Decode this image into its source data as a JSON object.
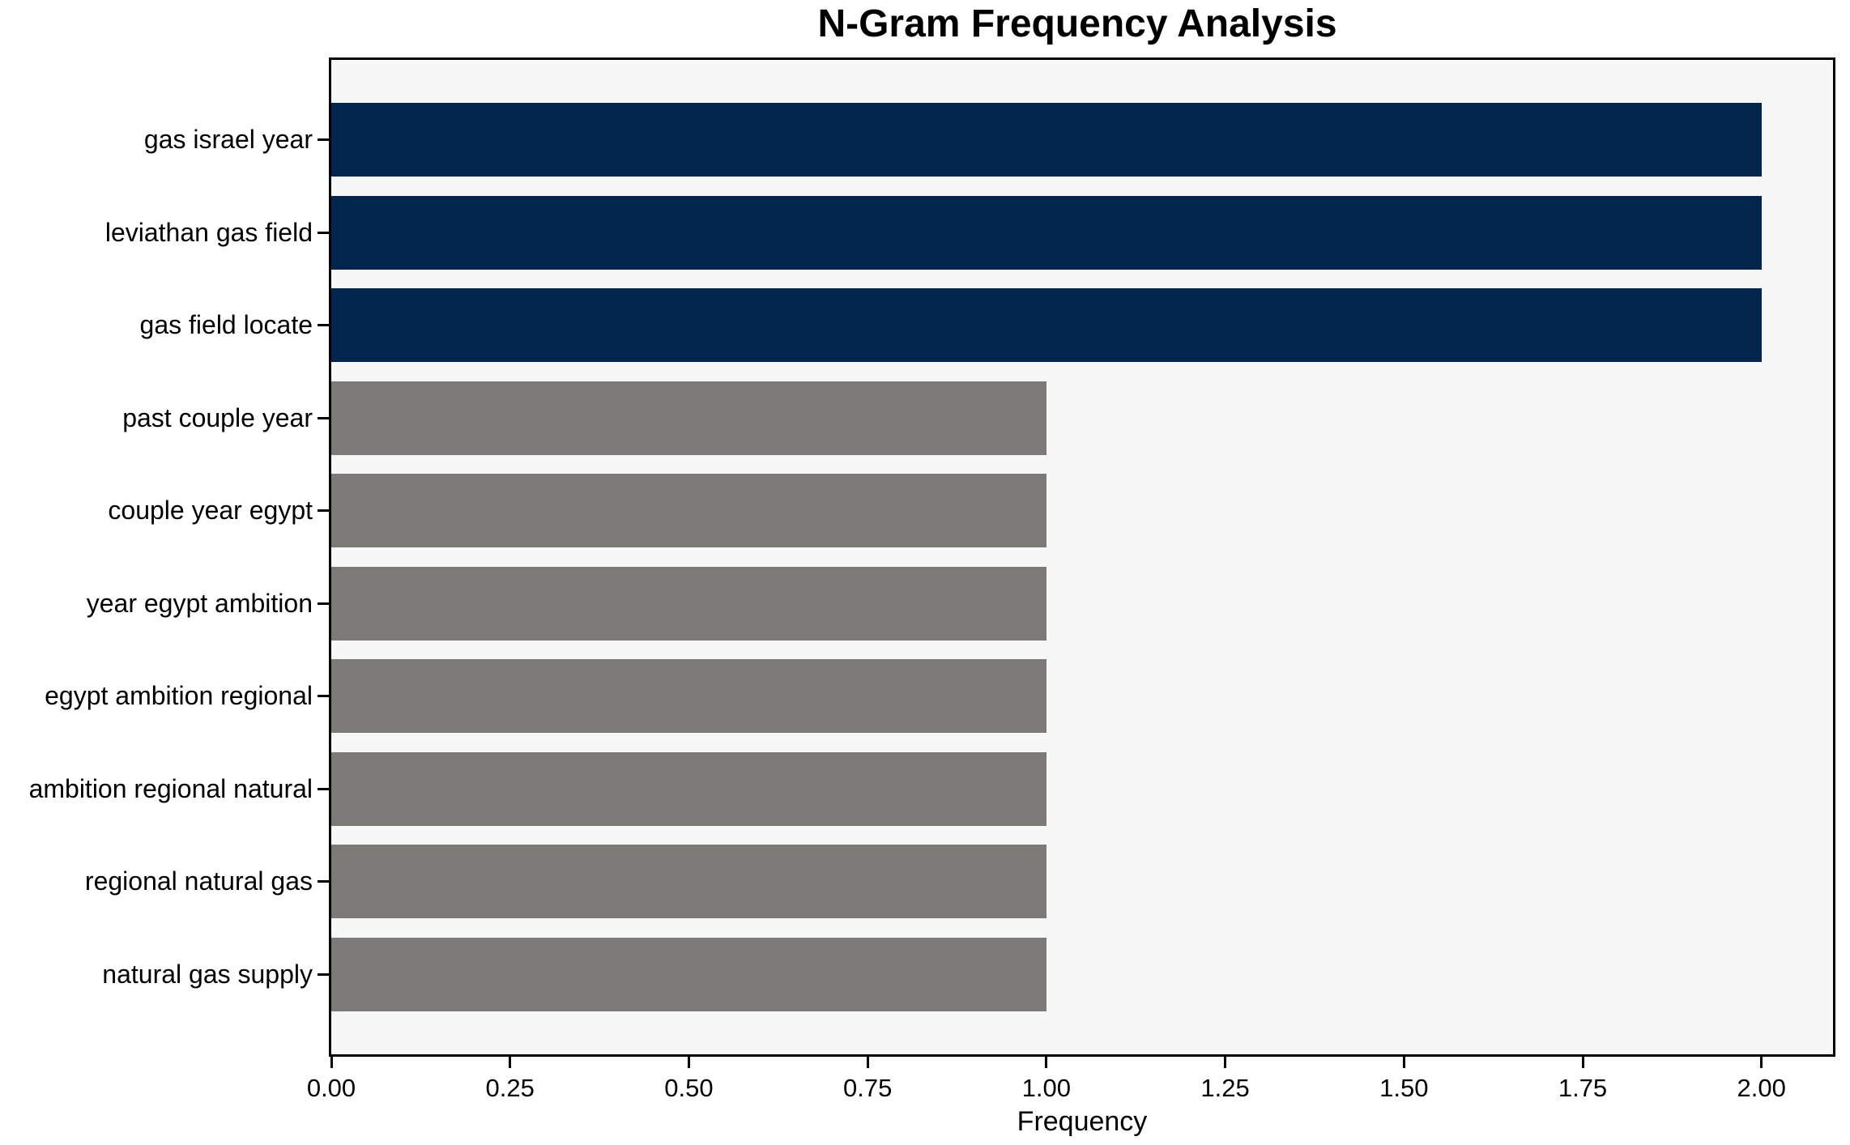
{
  "chart_data": {
    "type": "bar",
    "orientation": "horizontal",
    "title": "N-Gram Frequency Analysis",
    "xlabel": "Frequency",
    "ylabel": "",
    "categories": [
      "gas israel year",
      "leviathan gas field",
      "gas field locate",
      "past couple year",
      "couple year egypt",
      "year egypt ambition",
      "egypt ambition regional",
      "ambition regional natural",
      "regional natural gas",
      "natural gas supply"
    ],
    "values": [
      2,
      2,
      2,
      1,
      1,
      1,
      1,
      1,
      1,
      1
    ],
    "bar_colors": [
      "#01254d",
      "#01254d",
      "#01254d",
      "#7b7a76",
      "#7b7a76",
      "#7b7a76",
      "#7b7a76",
      "#7b7a76",
      "#7b7a76",
      "#7b7a76"
    ],
    "highlight_color": "#01254d",
    "default_color": "#7b7a76",
    "x_ticks": [
      "0.00",
      "0.25",
      "0.50",
      "0.75",
      "1.00",
      "1.25",
      "1.50",
      "1.75",
      "2.00"
    ],
    "x_tick_values": [
      0,
      0.25,
      0.5,
      0.75,
      1,
      1.25,
      1.5,
      1.75,
      2
    ],
    "xlim": [
      0,
      2.1
    ],
    "grid": false,
    "legend": null,
    "plot_bg": "#f7f7f7",
    "figure_bg": "#ffffff"
  }
}
